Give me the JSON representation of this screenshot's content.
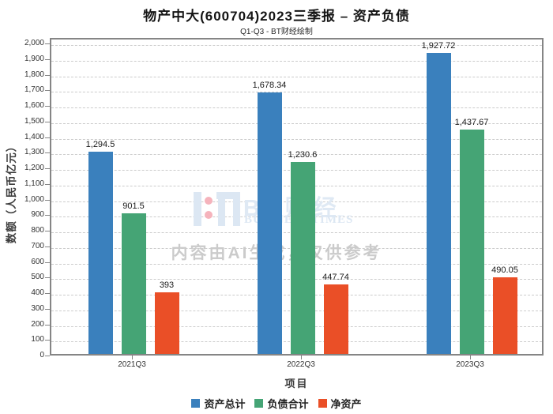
{
  "title": "物产中大(600704)2023三季报 – 资产负债",
  "subtitle": "Q1-Q3 - BT财经绘制",
  "watermark": {
    "brand_cn": "BT财经",
    "brand_en": "BUSINESS TIMES",
    "ai_note": "内容由AI生成，仅供参考"
  },
  "chart_data": {
    "type": "bar",
    "title": "物产中大(600704)2023三季报 – 资产负债",
    "subtitle": "Q1-Q3 - BT财经绘制",
    "categories": [
      "2021Q3",
      "2022Q3",
      "2023Q3"
    ],
    "series": [
      {
        "name": "资产总计",
        "color": "#3a80bd",
        "values": [
          1294.5,
          1678.34,
          1927.72
        ],
        "labels": [
          "1,294.5",
          "1,678.34",
          "1,927.72"
        ]
      },
      {
        "name": "负债合计",
        "color": "#45a475",
        "values": [
          901.5,
          1230.6,
          1437.67
        ],
        "labels": [
          "901.5",
          "1,230.6",
          "1,437.67"
        ]
      },
      {
        "name": "净资产",
        "color": "#ea4f27",
        "values": [
          393,
          447.74,
          490.05
        ],
        "labels": [
          "393",
          "447.74",
          "490.05"
        ]
      }
    ],
    "xlabel": "项目",
    "ylabel": "数额（人民币亿元）",
    "ylim": [
      0,
      2000
    ],
    "ytick_step": 100,
    "grid": true,
    "gridline_style": "dashed",
    "legend_position": "bottom"
  }
}
